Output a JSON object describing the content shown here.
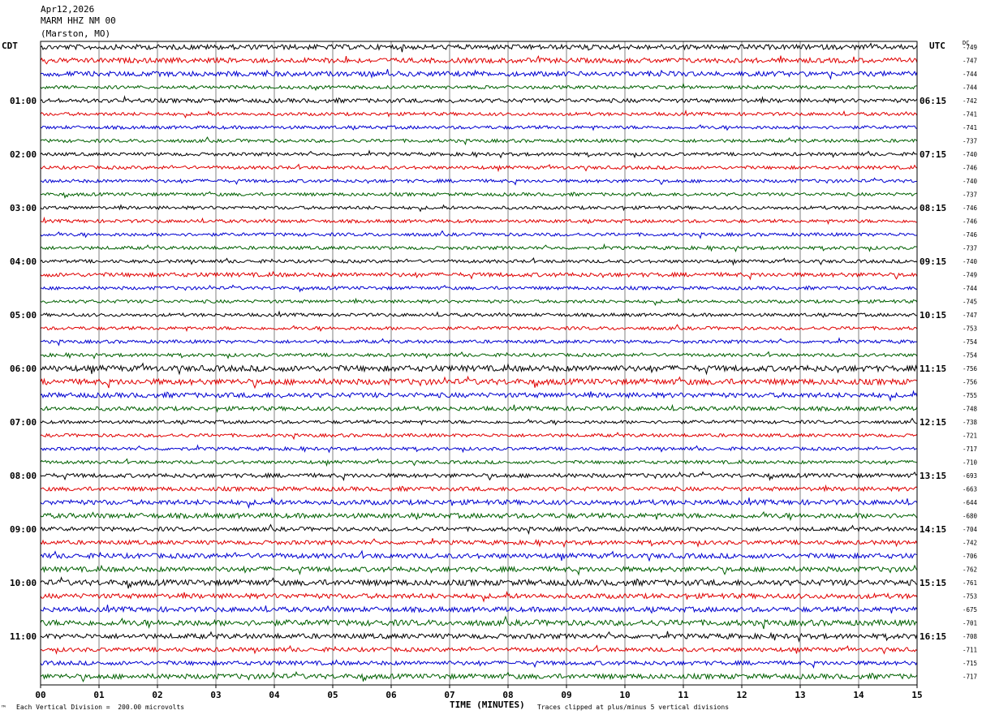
{
  "header": {
    "date": "Apr12,2026",
    "station": "MARM HHZ NM 00",
    "location": "(Marston, MO)"
  },
  "labels": {
    "left_tz": "CDT",
    "right_tz": "UTC",
    "dc_header": "DC",
    "corner_mark": "™"
  },
  "footer": {
    "scale_note": "Each Vertical Division =  200.00 microvolts",
    "clip_note": "Traces clipped at plus/minus 5 vertical divisions"
  },
  "colors": {
    "trace_cycle": [
      "#000000",
      "#e00000",
      "#0000d0",
      "#006000"
    ],
    "grid": "#808080",
    "frame": "#000000"
  },
  "chart_data": {
    "type": "line",
    "title": "",
    "xlabel": "TIME (MINUTES)",
    "ylabel": "",
    "xlim": [
      0,
      15
    ],
    "x_ticks": [
      "00",
      "01",
      "02",
      "03",
      "04",
      "05",
      "06",
      "07",
      "08",
      "09",
      "10",
      "11",
      "12",
      "13",
      "14",
      "15"
    ],
    "trace_count": 48,
    "traces_per_hour": 4,
    "grid": "vertical lines at each minute",
    "left_hour_labels": [
      "01:00",
      "02:00",
      "03:00",
      "04:00",
      "05:00",
      "06:00",
      "07:00",
      "08:00",
      "09:00",
      "10:00",
      "11:00"
    ],
    "right_hour_labels": [
      "06:15",
      "07:15",
      "08:15",
      "09:15",
      "10:15",
      "11:15",
      "12:15",
      "13:15",
      "14:15",
      "15:15",
      "16:15"
    ],
    "dc_offsets": [
      -749,
      -747,
      -744,
      -744,
      -742,
      -741,
      -741,
      -737,
      -740,
      -746,
      -740,
      -737,
      -746,
      -746,
      -746,
      -737,
      -740,
      -749,
      -744,
      -745,
      -747,
      -753,
      -754,
      -754,
      -756,
      -756,
      -755,
      -748,
      -738,
      -721,
      -717,
      -710,
      -693,
      -663,
      -644,
      -680,
      -704,
      -742,
      -706,
      -762,
      -761,
      -753,
      -675,
      -701,
      -708,
      -711,
      -715,
      -717
    ],
    "trace_amplitudes": [
      3,
      3,
      3,
      2,
      2.5,
      2,
      2,
      2,
      2,
      2,
      2,
      2,
      2,
      2,
      2,
      2,
      2,
      2.5,
      2,
      2,
      2,
      2,
      2,
      2,
      3.5,
      3.5,
      3,
      2.5,
      2,
      2,
      2,
      2,
      2.5,
      2.5,
      3,
      3,
      2.5,
      2.5,
      3,
      3,
      3.5,
      3,
      3,
      3.5,
      3,
      2.5,
      2.5,
      3
    ]
  }
}
